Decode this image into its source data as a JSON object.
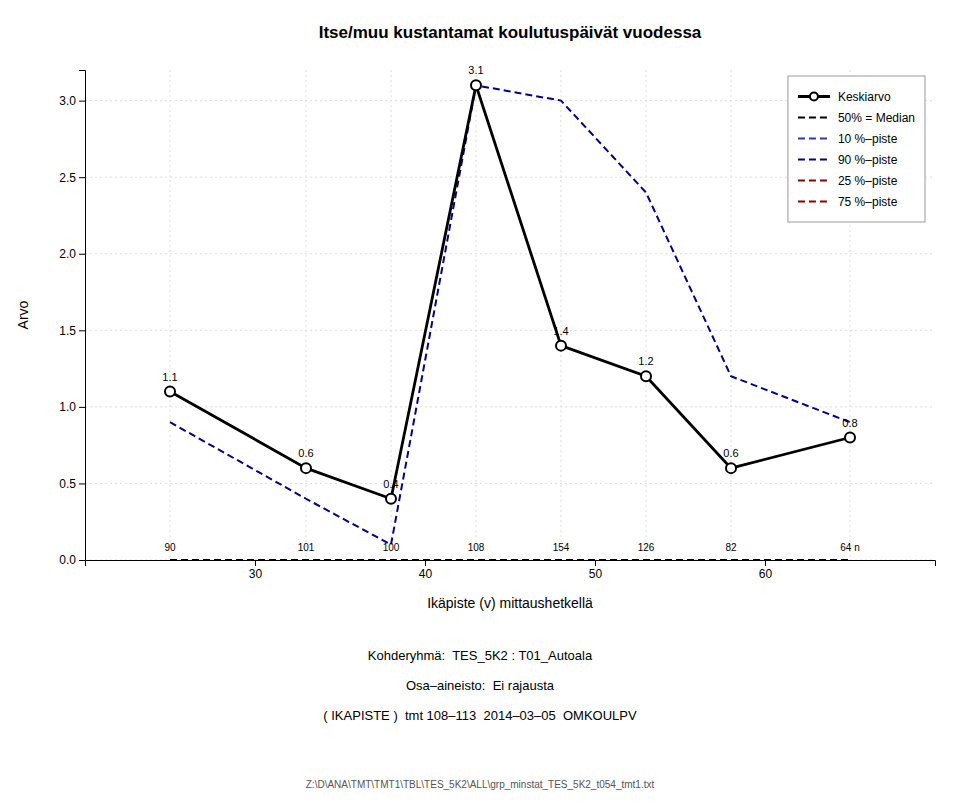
{
  "chart_data": {
    "type": "line",
    "title": "Itse/muu kustantamat koulutuspäivät vuodessa",
    "subtitle": [
      "Kohderyhmä:  TES_5K2 : T01_Autoala",
      "Osa–aineisto:  Ei rajausta",
      "( IKAPISTE )  tmt 108–113  2014–03–05  OMKOULPV",
      "Z:\\D\\ANA\\TMT\\TMT1\\TBL\\TES_5K2\\ALL\\grp_minstat_TES_5K2_t054_tmt1.txt"
    ],
    "x_label": "Ikäpiste (v) mittaushetkellä",
    "y_label": "Arvo",
    "x": [
      25,
      33,
      38,
      43,
      48,
      53,
      58,
      65
    ],
    "series": [
      {
        "name": "Keskiarvo",
        "color": "#000000",
        "line_style": "solid",
        "marker": "circle",
        "data_labels": true,
        "values": [
          1.1,
          0.6,
          0.4,
          3.1,
          1.4,
          1.2,
          0.6,
          0.8
        ]
      },
      {
        "name": "50% = Median",
        "color": "#000000",
        "line_style": "dashed",
        "values": [
          0.0,
          0.0,
          0.0,
          0.0,
          0.0,
          0.0,
          0.0,
          0.0
        ]
      },
      {
        "name": "10 %–piste",
        "color": "#3333bb",
        "line_style": "dashed",
        "values": [
          0.0,
          0.0,
          0.0,
          0.0,
          0.0,
          0.0,
          0.0,
          0.0
        ]
      },
      {
        "name": "90 %–piste",
        "color": "#00008b",
        "line_style": "dashed",
        "values": [
          0.9,
          0.4,
          0.1,
          3.1,
          3.0,
          2.4,
          1.2,
          0.9
        ]
      },
      {
        "name": "25 %–piste",
        "color": "#8b0000",
        "line_style": "dashed",
        "values": [
          0.0,
          0.0,
          0.0,
          0.0,
          0.0,
          0.0,
          0.0,
          0.0
        ]
      },
      {
        "name": "75 %–piste",
        "color": "#8b0000",
        "line_style": "dashed",
        "values": [
          0.0,
          0.0,
          0.0,
          0.0,
          0.0,
          0.0,
          0.0,
          0.0
        ]
      }
    ],
    "annotations": [
      "90",
      "101",
      "100",
      "108",
      "154",
      "126",
      "82",
      "64 n"
    ],
    "xlim": [
      20,
      70
    ],
    "xticks": [
      30,
      40,
      50,
      60
    ],
    "ylim": [
      0.0,
      3.2
    ],
    "yticks": [
      {
        "value": 0.0,
        "label": "0.0"
      },
      0.5,
      {
        "value": 1.0,
        "label": "1.0"
      },
      1.5,
      {
        "value": 2.0,
        "label": "2.0"
      },
      2.5,
      {
        "value": 3.0,
        "label": "3.0"
      }
    ],
    "grid": true,
    "legend": "upper right"
  }
}
